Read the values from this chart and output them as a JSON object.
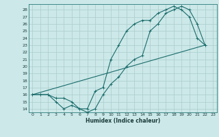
{
  "title": "",
  "xlabel": "Humidex (Indice chaleur)",
  "bg_color": "#cce8e8",
  "grid_color": "#aacccc",
  "line_color": "#1a6b6b",
  "xlim": [
    -0.5,
    23.5
  ],
  "ylim": [
    13.5,
    28.8
  ],
  "xticks": [
    0,
    1,
    2,
    3,
    4,
    5,
    6,
    7,
    8,
    9,
    10,
    11,
    12,
    13,
    14,
    15,
    16,
    17,
    18,
    19,
    20,
    21,
    22,
    23
  ],
  "yticks": [
    14,
    15,
    16,
    17,
    18,
    19,
    20,
    21,
    22,
    23,
    24,
    25,
    26,
    27,
    28
  ],
  "line1_x": [
    0,
    1,
    2,
    3,
    4,
    5,
    6,
    7,
    8,
    9,
    10,
    11,
    12,
    13,
    14,
    15,
    16,
    17,
    18,
    19,
    20,
    21,
    22
  ],
  "line1_y": [
    16,
    16,
    16,
    15.5,
    15.5,
    15,
    14,
    14,
    16.5,
    17,
    21,
    23,
    25,
    26,
    26.5,
    26.5,
    27.5,
    28,
    28.5,
    28,
    27,
    24,
    23
  ],
  "line2_x": [
    0,
    1,
    2,
    3,
    4,
    5,
    6,
    7,
    8,
    9,
    10,
    11,
    12,
    13,
    14,
    15,
    16,
    17,
    18,
    19,
    20,
    21,
    22
  ],
  "line2_y": [
    16,
    16,
    16,
    15,
    14,
    14.5,
    14,
    13.5,
    14,
    16,
    17.5,
    18.5,
    20,
    21,
    21.5,
    25,
    26,
    27.5,
    28,
    28.5,
    28,
    26,
    23
  ],
  "line3_x": [
    0,
    22
  ],
  "line3_y": [
    16,
    23
  ]
}
